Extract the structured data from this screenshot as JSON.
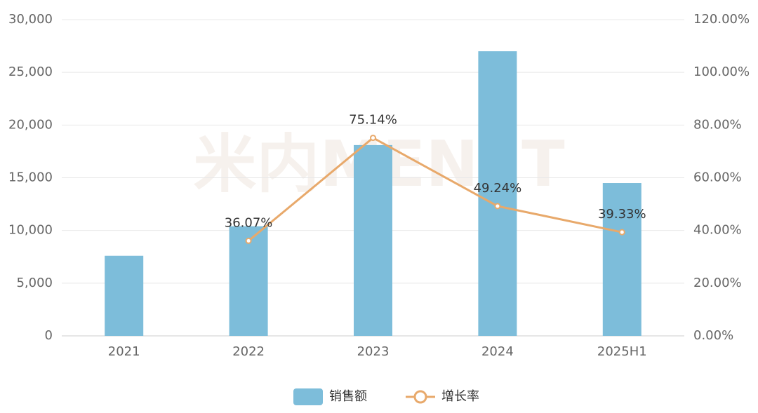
{
  "chart_data": {
    "type": "combo",
    "watermark": "米内MENET",
    "categories": [
      "2021",
      "2022",
      "2023",
      "2024",
      "2025H1"
    ],
    "series": [
      {
        "name": "销售额",
        "type": "bar",
        "color": "#7dbdda",
        "values": [
          7600,
          10400,
          18100,
          27000,
          14500
        ]
      },
      {
        "name": "增长率",
        "type": "line",
        "axis": "y2",
        "color": "#e8a96b",
        "values": [
          null,
          36.07,
          75.14,
          49.24,
          39.33
        ],
        "value_labels": [
          null,
          "36.07%",
          "75.14%",
          "49.24%",
          "39.33%"
        ]
      }
    ],
    "ylim": [
      0,
      30000
    ],
    "yticks": [
      0,
      {
        "value": 5000,
        "label": "5,000"
      },
      {
        "value": 10000,
        "label": "10,000"
      },
      {
        "value": 15000,
        "label": "15,000"
      },
      {
        "value": 20000,
        "label": "20,000"
      },
      {
        "value": 25000,
        "label": "25,000"
      },
      {
        "value": 30000,
        "label": "30,000"
      }
    ],
    "y2lim": [
      0,
      120
    ],
    "y2ticks": [
      {
        "value": 0,
        "label": "0.00%"
      },
      {
        "value": 20,
        "label": "20.00%"
      },
      {
        "value": 40,
        "label": "40.00%"
      },
      {
        "value": 60,
        "label": "60.00%"
      },
      {
        "value": 80,
        "label": "80.00%"
      },
      {
        "value": 100,
        "label": "100.00%"
      },
      {
        "value": 120,
        "label": "120.00%"
      }
    ],
    "grid": true,
    "legend": "bottom"
  }
}
